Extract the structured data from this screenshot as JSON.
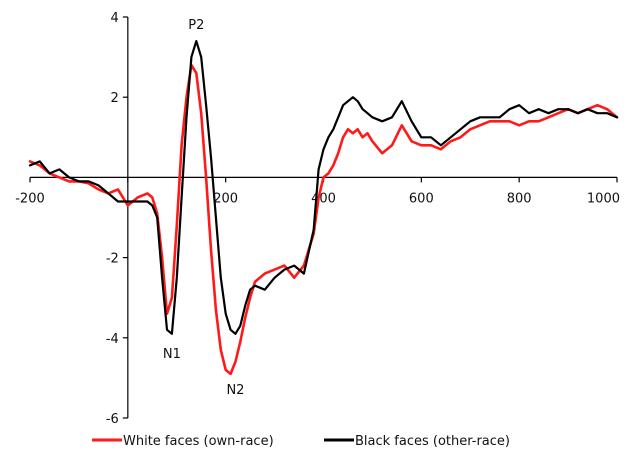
{
  "chart_data": {
    "type": "line",
    "title": "",
    "xlabel": "",
    "ylabel": "",
    "xlim": [
      -200,
      1000
    ],
    "ylim": [
      -6,
      4
    ],
    "x_ticks": [
      -200,
      0,
      200,
      400,
      600,
      800,
      1000
    ],
    "x_tick_labels": [
      "-200",
      "",
      "200",
      "400",
      "600",
      "800",
      "1000"
    ],
    "y_ticks": [
      -6,
      -4,
      -2,
      2,
      4
    ],
    "y_tick_labels": [
      "-6",
      "-4",
      "-2",
      "2",
      "4"
    ],
    "grid": false,
    "legend_position": "bottom",
    "annotations": [
      {
        "text": "P2",
        "x": 140,
        "y": 3.7
      },
      {
        "text": "N1",
        "x": 90,
        "y": -4.5
      },
      {
        "text": "N2",
        "x": 220,
        "y": -5.4
      }
    ],
    "series": [
      {
        "name": "White faces (own-race)",
        "color": "#ff1a1a",
        "x": [
          -200,
          -180,
          -160,
          -140,
          -120,
          -100,
          -80,
          -60,
          -40,
          -20,
          0,
          20,
          40,
          50,
          60,
          70,
          80,
          90,
          100,
          110,
          120,
          130,
          140,
          150,
          160,
          170,
          180,
          190,
          200,
          210,
          220,
          230,
          240,
          250,
          260,
          280,
          300,
          320,
          340,
          360,
          380,
          390,
          400,
          410,
          420,
          430,
          440,
          450,
          460,
          470,
          480,
          490,
          500,
          520,
          540,
          560,
          580,
          600,
          620,
          640,
          660,
          680,
          700,
          720,
          740,
          760,
          780,
          800,
          820,
          840,
          860,
          880,
          900,
          920,
          940,
          960,
          980,
          1000
        ],
        "y": [
          0.4,
          0.3,
          0.1,
          0.0,
          -0.1,
          -0.1,
          -0.15,
          -0.3,
          -0.4,
          -0.3,
          -0.7,
          -0.5,
          -0.4,
          -0.5,
          -0.9,
          -2.0,
          -3.4,
          -3.0,
          -1.2,
          0.8,
          2.0,
          2.8,
          2.6,
          1.6,
          0.0,
          -1.8,
          -3.3,
          -4.3,
          -4.8,
          -4.9,
          -4.6,
          -4.1,
          -3.5,
          -3.0,
          -2.6,
          -2.4,
          -2.3,
          -2.2,
          -2.5,
          -2.2,
          -1.4,
          -0.5,
          0.0,
          0.1,
          0.3,
          0.6,
          1.0,
          1.2,
          1.1,
          1.2,
          1.0,
          1.1,
          0.9,
          0.6,
          0.8,
          1.3,
          0.9,
          0.8,
          0.8,
          0.7,
          0.9,
          1.0,
          1.2,
          1.3,
          1.4,
          1.4,
          1.4,
          1.3,
          1.4,
          1.4,
          1.5,
          1.6,
          1.7,
          1.6,
          1.7,
          1.8,
          1.7,
          1.5
        ]
      },
      {
        "name": "Black faces (other-race)",
        "color": "#000000",
        "x": [
          -200,
          -180,
          -160,
          -140,
          -120,
          -100,
          -80,
          -60,
          -40,
          -20,
          0,
          20,
          40,
          50,
          60,
          70,
          80,
          90,
          100,
          110,
          120,
          130,
          140,
          150,
          160,
          170,
          180,
          190,
          200,
          210,
          220,
          230,
          240,
          250,
          260,
          280,
          300,
          320,
          340,
          360,
          380,
          390,
          400,
          410,
          420,
          430,
          440,
          450,
          460,
          470,
          480,
          490,
          500,
          520,
          540,
          560,
          580,
          600,
          620,
          640,
          660,
          680,
          700,
          720,
          740,
          760,
          780,
          800,
          820,
          840,
          860,
          880,
          900,
          920,
          940,
          960,
          980,
          1000
        ],
        "y": [
          0.3,
          0.4,
          0.1,
          0.2,
          0.0,
          -0.1,
          -0.1,
          -0.2,
          -0.4,
          -0.6,
          -0.6,
          -0.6,
          -0.6,
          -0.7,
          -1.0,
          -2.5,
          -3.8,
          -3.9,
          -2.5,
          -0.5,
          1.5,
          3.0,
          3.4,
          3.0,
          1.8,
          0.5,
          -1.0,
          -2.5,
          -3.4,
          -3.8,
          -3.9,
          -3.7,
          -3.2,
          -2.8,
          -2.7,
          -2.8,
          -2.5,
          -2.3,
          -2.2,
          -2.4,
          -1.3,
          0.2,
          0.7,
          1.0,
          1.2,
          1.5,
          1.8,
          1.9,
          2.0,
          1.9,
          1.7,
          1.6,
          1.5,
          1.4,
          1.5,
          1.9,
          1.4,
          1.0,
          1.0,
          0.8,
          1.0,
          1.2,
          1.4,
          1.5,
          1.5,
          1.5,
          1.7,
          1.8,
          1.6,
          1.7,
          1.6,
          1.7,
          1.7,
          1.6,
          1.7,
          1.6,
          1.6,
          1.5
        ]
      }
    ]
  }
}
